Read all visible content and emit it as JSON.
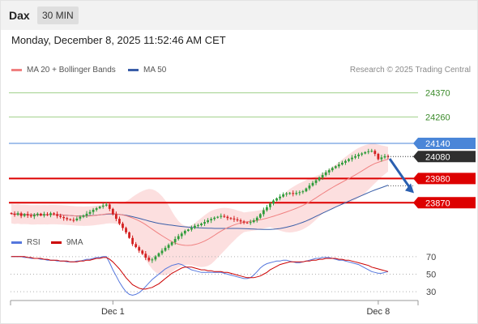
{
  "header": {
    "symbol": "Dax",
    "interval": "30 MIN",
    "datetime": "Monday, December 8, 2025 11:52:46 AM CET"
  },
  "legend": {
    "items": [
      {
        "label": "MA 20 + Bollinger Bands",
        "color": "#f08080"
      },
      {
        "label": "MA 50",
        "color": "#3a5ea8"
      }
    ],
    "credit": "Research © 2025 Trading Central"
  },
  "rsi_legend": {
    "items": [
      {
        "label": "RSI",
        "color": "#5577dd"
      },
      {
        "label": "9MA",
        "color": "#cc0000"
      }
    ]
  },
  "colors": {
    "bull": "#2e9c3a",
    "bear": "#d42020",
    "ma20": "#f08080",
    "ma50": "#3a5ea8",
    "band_fill": "#fbd4d4",
    "green_line": "#9fd08a",
    "blue_level": "#4a86d8",
    "red_level": "#dd0000",
    "arrow": "#2a5fb0",
    "rsi": "#5577dd",
    "rsi_ma": "#cc0000"
  },
  "chart_data": {
    "type": "candlestick",
    "x_ticks": [
      {
        "label": "Dec 1",
        "index": 31
      },
      {
        "label": "Dec 8",
        "index": 112
      }
    ],
    "ylim": [
      23720,
      24420
    ],
    "levels": [
      {
        "label": "24370",
        "value": 24370,
        "kind": "resistance"
      },
      {
        "label": "24260",
        "value": 24260,
        "kind": "resistance"
      },
      {
        "label": "24140",
        "value": 24140,
        "kind": "pivot"
      },
      {
        "label": "23980",
        "value": 23980,
        "kind": "support"
      },
      {
        "label": "23870",
        "value": 23870,
        "kind": "support"
      }
    ],
    "last_price": {
      "label": "24080",
      "value": 24080
    },
    "close_series": [
      23820,
      23815,
      23822,
      23810,
      23818,
      23812,
      23808,
      23815,
      23820,
      23812,
      23818,
      23814,
      23822,
      23818,
      23810,
      23805,
      23800,
      23795,
      23792,
      23790,
      23798,
      23806,
      23812,
      23820,
      23828,
      23838,
      23845,
      23852,
      23857,
      23862,
      23842,
      23818,
      23797,
      23775,
      23755,
      23735,
      23710,
      23682,
      23668,
      23652,
      23638,
      23620,
      23608,
      23612,
      23626,
      23640,
      23652,
      23665,
      23678,
      23690,
      23705,
      23718,
      23730,
      23742,
      23748,
      23755,
      23765,
      23768,
      23775,
      23782,
      23790,
      23796,
      23802,
      23806,
      23810,
      23806,
      23800,
      23798,
      23794,
      23790,
      23785,
      23780,
      23778,
      23782,
      23790,
      23802,
      23818,
      23836,
      23850,
      23866,
      23880,
      23890,
      23898,
      23908,
      23912,
      23914,
      23910,
      23915,
      23918,
      23922,
      23935,
      23948,
      23960,
      23972,
      23985,
      23996,
      24008,
      24018,
      24028,
      24036,
      24044,
      24052,
      24060,
      24068,
      24075,
      24082,
      24089,
      24094,
      24100,
      24104,
      24106,
      24092,
      24068,
      24076,
      24082,
      24080
    ],
    "rsi": {
      "levels": [
        70,
        50,
        30
      ],
      "rsi_values": [
        70,
        70,
        70,
        70,
        69,
        69,
        68,
        68,
        68,
        67,
        67,
        66,
        66,
        66,
        65,
        65,
        65,
        64,
        64,
        64,
        65,
        65,
        66,
        67,
        67,
        68,
        69,
        69,
        70,
        70,
        63,
        55,
        48,
        41,
        35,
        30,
        27,
        26,
        27,
        29,
        32,
        36,
        40,
        44,
        47,
        50,
        53,
        56,
        58,
        60,
        61,
        62,
        61,
        59,
        57,
        55,
        54,
        53,
        52,
        52,
        52,
        52,
        52,
        52,
        52,
        51,
        50,
        49,
        48,
        47,
        46,
        45,
        45,
        46,
        49,
        53,
        57,
        60,
        62,
        63,
        64,
        65,
        65,
        66,
        66,
        65,
        64,
        63,
        63,
        64,
        65,
        66,
        67,
        68,
        68,
        69,
        69,
        69,
        68,
        67,
        66,
        66,
        65,
        64,
        63,
        62,
        61,
        59,
        57,
        55,
        53,
        52,
        51,
        51,
        52,
        53
      ],
      "ma_values": [
        70,
        70,
        70,
        70,
        70,
        69,
        69,
        68,
        68,
        68,
        67,
        67,
        66,
        66,
        66,
        65,
        65,
        65,
        64,
        64,
        64,
        65,
        65,
        66,
        66,
        67,
        68,
        68,
        69,
        69,
        67,
        64,
        60,
        56,
        51,
        46,
        42,
        38,
        36,
        34,
        33,
        33,
        34,
        35,
        37,
        39,
        42,
        45,
        48,
        51,
        53,
        55,
        57,
        58,
        58,
        58,
        57,
        56,
        55,
        55,
        54,
        54,
        53,
        53,
        53,
        52,
        52,
        51,
        50,
        49,
        48,
        47,
        46,
        46,
        46,
        47,
        48,
        50,
        52,
        55,
        57,
        59,
        61,
        62,
        63,
        64,
        64,
        64,
        64,
        64,
        65,
        65,
        66,
        66,
        67,
        67,
        68,
        68,
        68,
        68,
        67,
        67,
        66,
        66,
        65,
        64,
        63,
        62,
        61,
        60,
        58,
        57,
        56,
        55,
        54,
        53
      ]
    }
  }
}
